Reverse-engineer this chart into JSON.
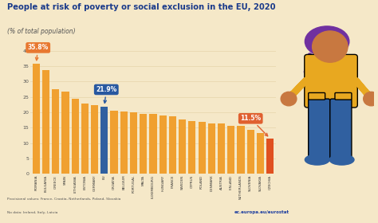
{
  "title": "People at risk of poverty or social exclusion in the EU, 2020",
  "subtitle": "(% of total population)",
  "categories": [
    "ROMANIA",
    "BULGARIA",
    "GREECE",
    "SPAIN",
    "LITHUANIA",
    "ESTONIA",
    "GERMANY",
    "EU",
    "CROATIA",
    "BELGIUM",
    "PORTUGAL",
    "MALTA",
    "LUXEMBOURG",
    "HUNGARY",
    "FRANCE",
    "SWEDEN",
    "CYPRUS",
    "POLAND",
    "DENMARK",
    "AUSTRIA",
    "FINLAND",
    "NETHERLANDS",
    "SLOVENIA",
    "SLOVAKIA",
    "CZECHIA"
  ],
  "values": [
    35.8,
    33.6,
    27.5,
    26.8,
    24.4,
    22.9,
    22.4,
    21.9,
    20.5,
    20.3,
    19.9,
    19.6,
    19.4,
    19.1,
    18.6,
    17.6,
    17.3,
    17.0,
    16.4,
    16.3,
    15.7,
    15.5,
    14.3,
    13.4,
    11.5
  ],
  "bar_color_default": "#f0a030",
  "bar_color_eu": "#3060a0",
  "bar_color_czechia": "#e05020",
  "background_color": "#f5e8c8",
  "title_color": "#1a3a8a",
  "subtitle_color": "#555555",
  "grid_color": "#e8d8b0",
  "ytick_color": "#555555",
  "xtick_color": "#333333",
  "ylim": [
    0,
    42
  ],
  "yticks": [
    0,
    5,
    10,
    15,
    20,
    25,
    30,
    35,
    40
  ],
  "annotation_romania": "35.8%",
  "annotation_eu": "21.9%",
  "annotation_czechia": "11.5%",
  "balloon_color_romania": "#e87830",
  "balloon_color_eu": "#2858a0",
  "balloon_color_czechia": "#e06030",
  "footnote1": "Provisional values: France, Croatia, Netherlands, Poland, Slovakia",
  "footnote2": "No data: Ireland, Italy, Latvia",
  "source": "ec.europa.eu/eurostat",
  "person_colors": {
    "hair": "#7030a0",
    "head": "#c87840",
    "body_top": "#e8a820",
    "body_bottom": "#3060a0",
    "shoes": "#3060a0",
    "hands": "#c87840",
    "pocket_flap": "#e8a820"
  }
}
